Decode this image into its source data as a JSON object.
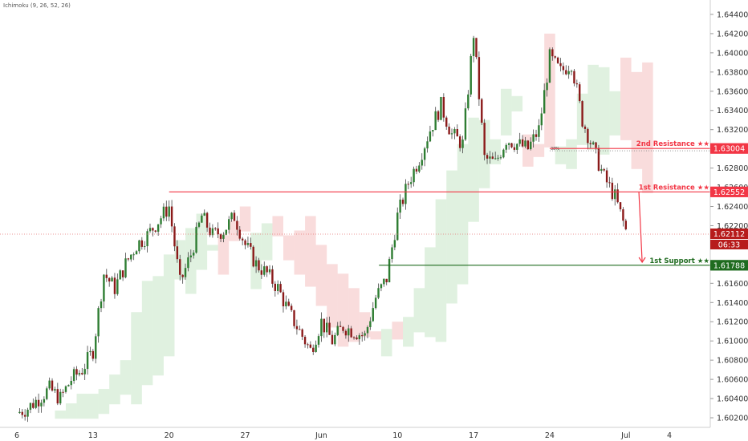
{
  "indicator": {
    "label": "Ichimoku (9, 26, 52, 26)"
  },
  "chart_data": {
    "type": "candlestick",
    "y_axis": {
      "ticks": [
        "1.64400",
        "1.64200",
        "1.64000",
        "1.63800",
        "1.63600",
        "1.63400",
        "1.63200",
        "1.63000",
        "1.62800",
        "1.62600",
        "1.62400",
        "1.62200",
        "1.62000",
        "1.61800",
        "1.61600",
        "1.61400",
        "1.61200",
        "1.61000",
        "1.60800",
        "1.60600",
        "1.60400",
        "1.60200"
      ],
      "range": [
        1.601,
        1.6455
      ]
    },
    "x_axis": {
      "ticks": [
        {
          "label": "6",
          "day": 0
        },
        {
          "label": "13",
          "day": 7
        },
        {
          "label": "20",
          "day": 14
        },
        {
          "label": "27",
          "day": 21
        },
        {
          "label": "Jun",
          "day": 28
        },
        {
          "label": "10",
          "day": 35
        },
        {
          "label": "17",
          "day": 42
        },
        {
          "label": "24",
          "day": 49
        },
        {
          "label": "Jul",
          "day": 56
        },
        {
          "label": "4",
          "day": 60
        }
      ]
    },
    "price_path": [
      [
        0,
        1.6025
      ],
      [
        1,
        1.603
      ],
      [
        2,
        1.604
      ],
      [
        3,
        1.605
      ],
      [
        4,
        1.604
      ],
      [
        5,
        1.606
      ],
      [
        6,
        1.607
      ],
      [
        7,
        1.609
      ],
      [
        8,
        1.617
      ],
      [
        9,
        1.6155
      ],
      [
        10,
        1.618
      ],
      [
        11,
        1.62
      ],
      [
        12,
        1.621
      ],
      [
        13,
        1.6225
      ],
      [
        14,
        1.624
      ],
      [
        15,
        1.616
      ],
      [
        16,
        1.619
      ],
      [
        17,
        1.623
      ],
      [
        18,
        1.621
      ],
      [
        19,
        1.6215
      ],
      [
        20,
        1.623
      ],
      [
        21,
        1.62
      ],
      [
        22,
        1.618
      ],
      [
        23,
        1.617
      ],
      [
        24,
        1.6155
      ],
      [
        25,
        1.613
      ],
      [
        26,
        1.611
      ],
      [
        27,
        1.609
      ],
      [
        28,
        1.612
      ],
      [
        29,
        1.61
      ],
      [
        30,
        1.6115
      ],
      [
        31,
        1.611
      ],
      [
        32,
        1.6105
      ],
      [
        33,
        1.6145
      ],
      [
        34,
        1.6165
      ],
      [
        35,
        1.623
      ],
      [
        36,
        1.6265
      ],
      [
        37,
        1.629
      ],
      [
        38,
        1.632
      ],
      [
        39,
        1.6345
      ],
      [
        40,
        1.6315
      ],
      [
        41,
        1.6305
      ],
      [
        42,
        1.642
      ],
      [
        43,
        1.629
      ],
      [
        44,
        1.6285
      ],
      [
        45,
        1.631
      ],
      [
        46,
        1.6305
      ],
      [
        47,
        1.63
      ],
      [
        48,
        1.632
      ],
      [
        49,
        1.6395
      ],
      [
        50,
        1.638
      ],
      [
        51,
        1.639
      ],
      [
        52,
        1.633
      ],
      [
        53,
        1.63
      ],
      [
        54,
        1.627
      ],
      [
        55,
        1.625
      ],
      [
        56,
        1.6215
      ],
      [
        56.6,
        1.6211
      ]
    ],
    "levels": [
      {
        "name": "2nd Resistance ★★",
        "value": "1.63004",
        "y": 1.63004,
        "color": "#f23645",
        "start_day": 49
      },
      {
        "name": "1st Resistance ★★",
        "value": "1.62552",
        "y": 1.62552,
        "color": "#f23645",
        "start_day": 14
      },
      {
        "name": "1st Support ★★",
        "value": "1.61788",
        "y": 1.61788,
        "color": "#1f6b1f",
        "start_day": 33.3
      }
    ],
    "fib_label": "38%",
    "fib_level": 1.6298,
    "current_price": "1.62112",
    "current_price_y": 1.62112,
    "countdown": "06:33",
    "projection": {
      "from_day": 57.2,
      "from_y": 1.6255,
      "to_day": 57.5,
      "to_y": 1.6182
    }
  }
}
